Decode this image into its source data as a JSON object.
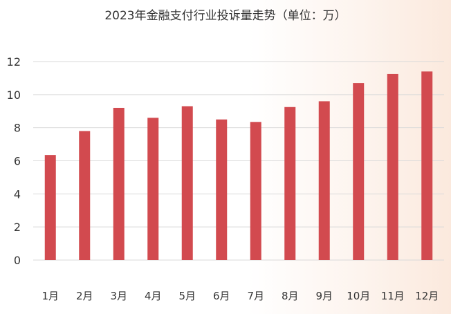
{
  "chart_data": {
    "type": "bar",
    "title": "2023年金融支付行业投诉量走势（单位：万）",
    "categories": [
      "1月",
      "2月",
      "3月",
      "4月",
      "5月",
      "6月",
      "7月",
      "8月",
      "9月",
      "10月",
      "11月",
      "12月"
    ],
    "series": [
      {
        "values": [
          6.35,
          7.8,
          9.2,
          8.6,
          9.3,
          8.5,
          8.35,
          9.25,
          9.6,
          10.7,
          11.25,
          11.4
        ]
      }
    ],
    "xlabel": "",
    "ylabel": "",
    "ylim": [
      0,
      12
    ],
    "yticks": [
      0,
      2,
      4,
      6,
      8,
      10,
      12
    ],
    "grid": true,
    "legend": "none"
  },
  "colors": {
    "bar": "#d24a4f",
    "grid": "#d9d9d9",
    "text": "#333333"
  }
}
